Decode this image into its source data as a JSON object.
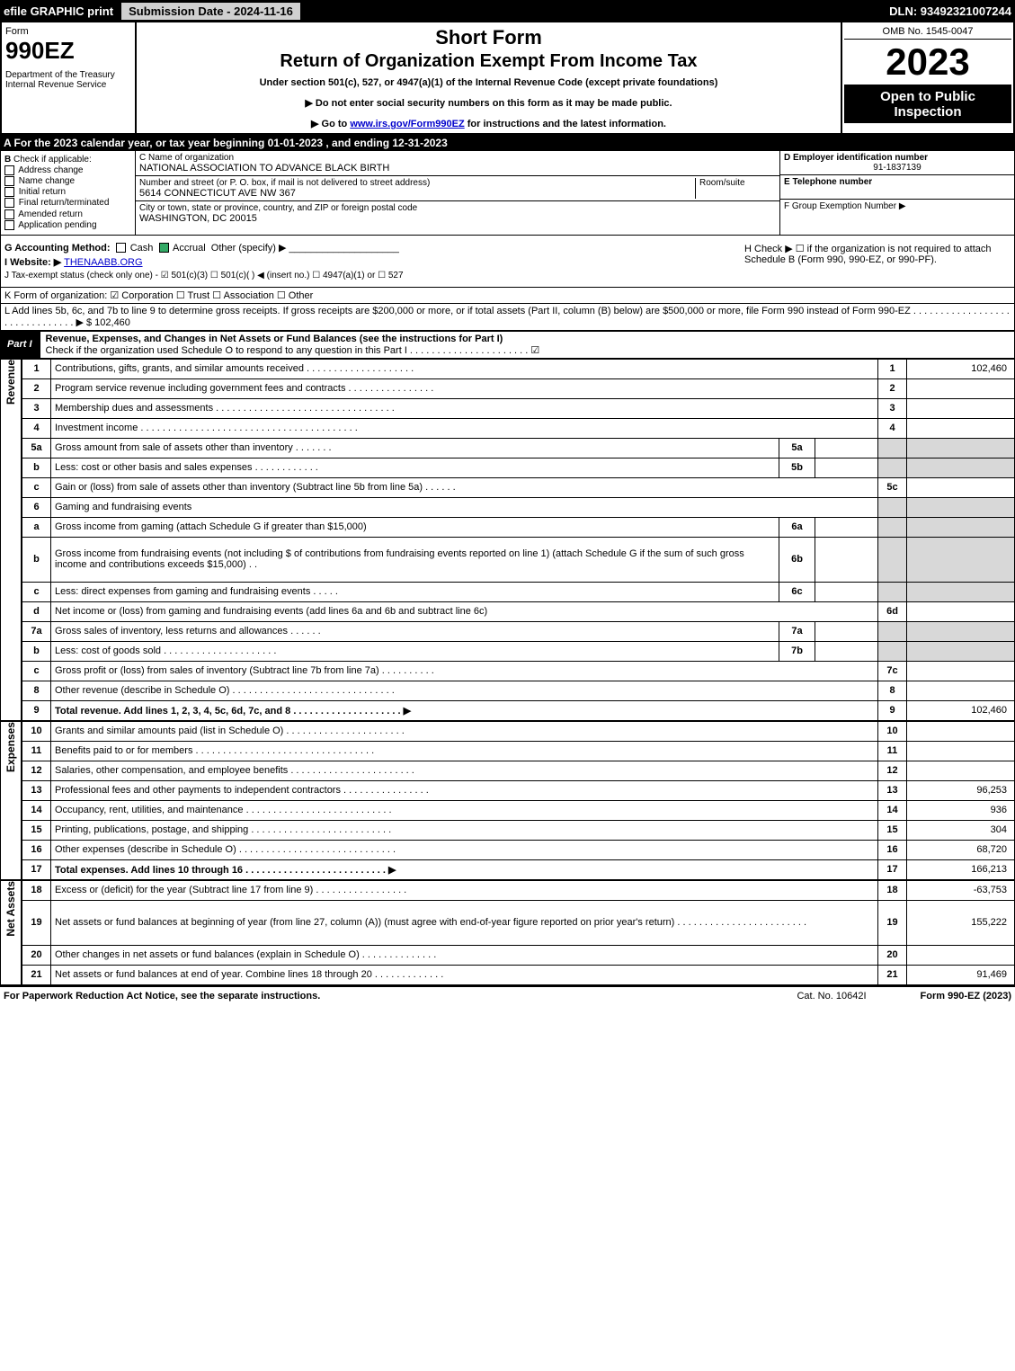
{
  "topbar": {
    "efile": "efile GRAPHIC print",
    "submission": "Submission Date - 2024-11-16",
    "dln": "DLN: 93492321007244"
  },
  "header": {
    "form_word": "Form",
    "form_number": "990EZ",
    "dept": "Department of the Treasury",
    "irs": "Internal Revenue Service",
    "short_form": "Short Form",
    "main_title": "Return of Organization Exempt From Income Tax",
    "subtitle": "Under section 501(c), 527, or 4947(a)(1) of the Internal Revenue Code (except private foundations)",
    "notice1": "▶ Do not enter social security numbers on this form as it may be made public.",
    "notice2_pre": "▶ Go to ",
    "notice2_link": "www.irs.gov/Form990EZ",
    "notice2_post": " for instructions and the latest information.",
    "omb": "OMB No. 1545-0047",
    "year": "2023",
    "open_to": "Open to Public Inspection"
  },
  "row_a": "A  For the 2023 calendar year, or tax year beginning 01-01-2023 , and ending 12-31-2023",
  "col_b": {
    "header": "B",
    "label": "Check if applicable:",
    "items": [
      "Address change",
      "Name change",
      "Initial return",
      "Final return/terminated",
      "Amended return",
      "Application pending"
    ]
  },
  "col_c": {
    "name_label": "C Name of organization",
    "name": "NATIONAL ASSOCIATION TO ADVANCE BLACK BIRTH",
    "street_label": "Number and street (or P. O. box, if mail is not delivered to street address)",
    "room_label": "Room/suite",
    "street": "5614 CONNECTICUT AVE NW 367",
    "city_label": "City or town, state or province, country, and ZIP or foreign postal code",
    "city": "WASHINGTON, DC  20015"
  },
  "col_de": {
    "d_label": "D Employer identification number",
    "ein": "91-1837139",
    "e_label": "E Telephone number",
    "f_label": "F Group Exemption Number  ▶"
  },
  "row_g": {
    "label": "G Accounting Method:",
    "cash": "Cash",
    "accrual": "Accrual",
    "other": "Other (specify) ▶",
    "accrual_checked": true
  },
  "row_h": "H  Check ▶  ☐  if the organization is not required to attach Schedule B (Form 990, 990-EZ, or 990-PF).",
  "row_i": {
    "label": "I Website: ▶",
    "value": "THENAABB.ORG"
  },
  "row_j": "J Tax-exempt status (check only one) - ☑ 501(c)(3)  ☐ 501(c)(  ) ◀ (insert no.)  ☐ 4947(a)(1) or  ☐ 527",
  "row_k": "K Form of organization:  ☑ Corporation   ☐ Trust   ☐ Association   ☐ Other",
  "row_l": {
    "text": "L Add lines 5b, 6c, and 7b to line 9 to determine gross receipts. If gross receipts are $200,000 or more, or if total assets (Part II, column (B) below) are $500,000 or more, file Form 990 instead of Form 990-EZ  . . . . . . . . . . . . . . . . . . . . . . . . . . . . . . .  ▶ $",
    "amount": "102,460"
  },
  "part1_header": {
    "tab": "Part I",
    "title": "Revenue, Expenses, and Changes in Net Assets or Fund Balances (see the instructions for Part I)",
    "check_line": "Check if the organization used Schedule O to respond to any question in this Part I . . . . . . . . . . . . . . . . . . . . . .  ☑"
  },
  "sections": {
    "revenue_label": "Revenue",
    "expenses_label": "Expenses",
    "netassets_label": "Net Assets"
  },
  "lines": [
    {
      "n": "1",
      "desc": "Contributions, gifts, grants, and similar amounts received  . . . . . . . . . . . . . . . . . . . .",
      "rn": "1",
      "rv": "102,460"
    },
    {
      "n": "2",
      "desc": "Program service revenue including government fees and contracts  . . . . . . . . . . . . . . . .",
      "rn": "2",
      "rv": ""
    },
    {
      "n": "3",
      "desc": "Membership dues and assessments  . . . . . . . . . . . . . . . . . . . . . . . . . . . . . . . . .",
      "rn": "3",
      "rv": ""
    },
    {
      "n": "4",
      "desc": "Investment income  . . . . . . . . . . . . . . . . . . . . . . . . . . . . . . . . . . . . . . . .",
      "rn": "4",
      "rv": ""
    },
    {
      "n": "5a",
      "desc": "Gross amount from sale of assets other than inventory  . . . . . . .",
      "mid": "5a",
      "mv": "",
      "shade": true
    },
    {
      "n": "b",
      "desc": "Less: cost or other basis and sales expenses  . . . . . . . . . . . .",
      "mid": "5b",
      "mv": "",
      "shade": true
    },
    {
      "n": "c",
      "desc": "Gain or (loss) from sale of assets other than inventory (Subtract line 5b from line 5a)  . . . . . .",
      "rn": "5c",
      "rv": ""
    },
    {
      "n": "6",
      "desc": "Gaming and fundraising events",
      "shade": true,
      "nobr": true
    },
    {
      "n": "a",
      "desc": "Gross income from gaming (attach Schedule G if greater than $15,000)",
      "mid": "6a",
      "mv": "",
      "shade": true
    },
    {
      "n": "b",
      "desc": "Gross income from fundraising events (not including $                      of contributions from fundraising events reported on line 1) (attach Schedule G if the sum of such gross income and contributions exceeds $15,000)   . .",
      "mid": "6b",
      "mv": "",
      "shade": true,
      "tall": true
    },
    {
      "n": "c",
      "desc": "Less: direct expenses from gaming and fundraising events  . . . . .",
      "mid": "6c",
      "mv": "",
      "shade": true
    },
    {
      "n": "d",
      "desc": "Net income or (loss) from gaming and fundraising events (add lines 6a and 6b and subtract line 6c)",
      "rn": "6d",
      "rv": ""
    },
    {
      "n": "7a",
      "desc": "Gross sales of inventory, less returns and allowances  . . . . . .",
      "mid": "7a",
      "mv": "",
      "shade": true
    },
    {
      "n": "b",
      "desc": "Less: cost of goods sold  . . . . . . . . . . . . . . . . . . . . .",
      "mid": "7b",
      "mv": "",
      "shade": true
    },
    {
      "n": "c",
      "desc": "Gross profit or (loss) from sales of inventory (Subtract line 7b from line 7a)  . . . . . . . . . .",
      "rn": "7c",
      "rv": ""
    },
    {
      "n": "8",
      "desc": "Other revenue (describe in Schedule O)  . . . . . . . . . . . . . . . . . . . . . . . . . . . . . .",
      "rn": "8",
      "rv": ""
    },
    {
      "n": "9",
      "desc": "Total revenue. Add lines 1, 2, 3, 4, 5c, 6d, 7c, and 8  . . . . . . . . . . . . . . . . . . . .  ▶",
      "rn": "9",
      "rv": "102,460",
      "bold": true
    }
  ],
  "exp_lines": [
    {
      "n": "10",
      "desc": "Grants and similar amounts paid (list in Schedule O)  . . . . . . . . . . . . . . . . . . . . . .",
      "rn": "10",
      "rv": ""
    },
    {
      "n": "11",
      "desc": "Benefits paid to or for members  . . . . . . . . . . . . . . . . . . . . . . . . . . . . . . . . .",
      "rn": "11",
      "rv": ""
    },
    {
      "n": "12",
      "desc": "Salaries, other compensation, and employee benefits  . . . . . . . . . . . . . . . . . . . . . . .",
      "rn": "12",
      "rv": ""
    },
    {
      "n": "13",
      "desc": "Professional fees and other payments to independent contractors  . . . . . . . . . . . . . . . .",
      "rn": "13",
      "rv": "96,253"
    },
    {
      "n": "14",
      "desc": "Occupancy, rent, utilities, and maintenance  . . . . . . . . . . . . . . . . . . . . . . . . . . .",
      "rn": "14",
      "rv": "936"
    },
    {
      "n": "15",
      "desc": "Printing, publications, postage, and shipping  . . . . . . . . . . . . . . . . . . . . . . . . . .",
      "rn": "15",
      "rv": "304"
    },
    {
      "n": "16",
      "desc": "Other expenses (describe in Schedule O)  . . . . . . . . . . . . . . . . . . . . . . . . . . . . .",
      "rn": "16",
      "rv": "68,720"
    },
    {
      "n": "17",
      "desc": "Total expenses. Add lines 10 through 16  . . . . . . . . . . . . . . . . . . . . . . . . . .  ▶",
      "rn": "17",
      "rv": "166,213",
      "bold": true
    }
  ],
  "na_lines": [
    {
      "n": "18",
      "desc": "Excess or (deficit) for the year (Subtract line 17 from line 9)  . . . . . . . . . . . . . . . . .",
      "rn": "18",
      "rv": "-63,753"
    },
    {
      "n": "19",
      "desc": "Net assets or fund balances at beginning of year (from line 27, column (A)) (must agree with end-of-year figure reported on prior year's return)  . . . . . . . . . . . . . . . . . . . . . . . .",
      "rn": "19",
      "rv": "155,222",
      "tall": true
    },
    {
      "n": "20",
      "desc": "Other changes in net assets or fund balances (explain in Schedule O)  . . . . . . . . . . . . . .",
      "rn": "20",
      "rv": ""
    },
    {
      "n": "21",
      "desc": "Net assets or fund balances at end of year. Combine lines 18 through 20  . . . . . . . . . . . . .",
      "rn": "21",
      "rv": "91,469"
    }
  ],
  "footer": {
    "left": "For Paperwork Reduction Act Notice, see the separate instructions.",
    "mid": "Cat. No. 10642I",
    "right": "Form 990-EZ (2023)"
  }
}
